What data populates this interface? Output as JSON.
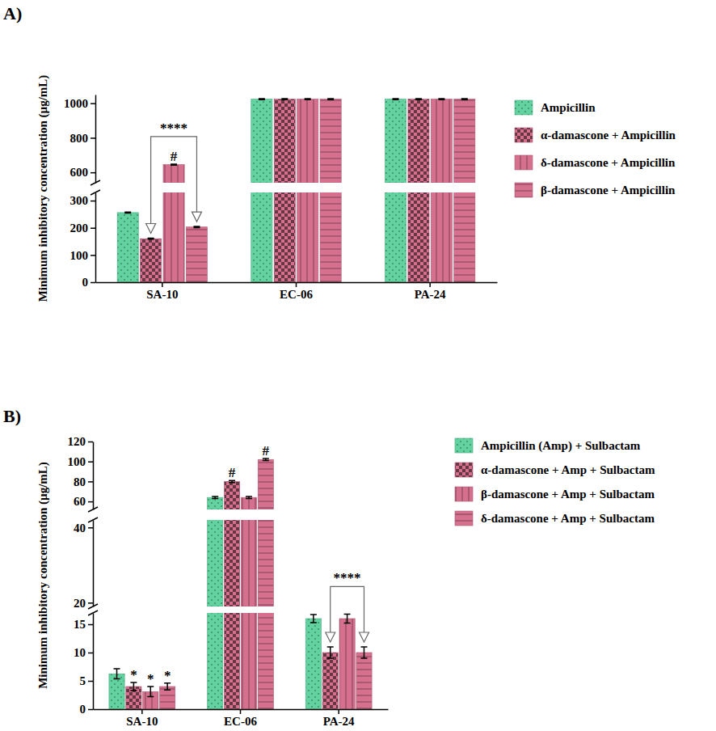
{
  "chart_data": [
    {
      "type": "bar",
      "title": "A)",
      "y_label": "Minimum inhibitory concentration (µg/mL)",
      "categories": [
        "SA-10",
        "EC-06",
        "PA-24"
      ],
      "series": [
        {
          "name": "Ampicillin",
          "color": "#62d3a0",
          "values": [
            256,
            1024,
            1024
          ],
          "errors": [
            2,
            3,
            3
          ]
        },
        {
          "name": "α-damascone + Ampicillin",
          "color": "#d5708f",
          "values": [
            160,
            1024,
            1024
          ],
          "errors": [
            2,
            3,
            3
          ]
        },
        {
          "name": "δ-damascone + Ampicillin",
          "color": "#d5708f",
          "values": [
            645,
            1024,
            1024
          ],
          "errors": [
            3,
            3,
            3
          ]
        },
        {
          "name": "β-damascone + Ampicillin",
          "color": "#d5708f",
          "values": [
            203,
            1024,
            1024
          ],
          "errors": [
            2,
            3,
            3
          ]
        }
      ],
      "y_segments": [
        {
          "ylim": [
            0,
            330
          ],
          "yticks": [
            0,
            100,
            200,
            300
          ]
        },
        {
          "ylim": [
            540,
            1050
          ],
          "yticks": [
            600,
            800,
            1000
          ]
        }
      ],
      "annotations": [
        {
          "text": "****",
          "category": 0,
          "series": [
            1,
            3
          ]
        },
        {
          "text": "#",
          "category": 0,
          "series": [
            2
          ]
        }
      ],
      "legend": "right"
    },
    {
      "type": "bar",
      "title": "B)",
      "y_label": "Minimum inhibitory concentration (µg/mL)",
      "categories": [
        "SA-10",
        "EC-06",
        "PA-24"
      ],
      "series": [
        {
          "name": "Ampicillin (Amp) + Sulbactam",
          "color": "#62d3a0",
          "values": [
            6.25,
            64,
            16
          ],
          "errors": [
            0.9,
            1,
            0.7
          ]
        },
        {
          "name": "α-damascone + Amp + Sulbactam",
          "color": "#d5708f",
          "values": [
            4,
            80,
            10
          ],
          "errors": [
            0.7,
            1,
            1
          ]
        },
        {
          "name": "β-damascone + Amp + Sulbactam",
          "color": "#d5708f",
          "values": [
            3.1,
            64,
            16
          ],
          "errors": [
            0.9,
            1,
            0.8
          ]
        },
        {
          "name": "δ-damascone + Amp + Sulbactam",
          "color": "#d5708f",
          "values": [
            4,
            102,
            10
          ],
          "errors": [
            0.6,
            1,
            1
          ]
        }
      ],
      "y_segments": [
        {
          "ylim": [
            0,
            17
          ],
          "yticks": [
            0,
            5,
            10,
            15
          ]
        },
        {
          "ylim": [
            19,
            42
          ],
          "yticks": [
            20,
            40
          ]
        },
        {
          "ylim": [
            52,
            120
          ],
          "yticks": [
            60,
            80,
            100,
            120
          ]
        }
      ],
      "annotations": [
        {
          "text": "*",
          "category": 0,
          "series": [
            1
          ]
        },
        {
          "text": "*",
          "category": 0,
          "series": [
            2
          ]
        },
        {
          "text": "*",
          "category": 0,
          "series": [
            3
          ]
        },
        {
          "text": "#",
          "category": 1,
          "series": [
            1
          ]
        },
        {
          "text": "#",
          "category": 1,
          "series": [
            3
          ]
        },
        {
          "text": "****",
          "category": 2,
          "series": [
            1,
            3
          ]
        }
      ],
      "legend": "right"
    }
  ]
}
